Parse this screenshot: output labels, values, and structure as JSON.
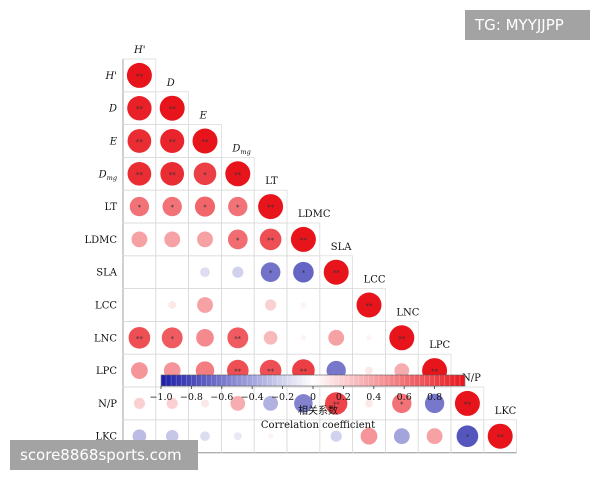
{
  "watermarks": {
    "top_right": "TG: MYYJJPP",
    "bottom_left": "score8868sports.com"
  },
  "chart_data": {
    "type": "heatmap",
    "variables": [
      {
        "label": "H'",
        "italic": true
      },
      {
        "label": "D",
        "italic": true
      },
      {
        "label": "E",
        "italic": true
      },
      {
        "label": "D",
        "sub": "mg",
        "italic": true
      },
      {
        "label": "LT"
      },
      {
        "label": "LDMC"
      },
      {
        "label": "SLA"
      },
      {
        "label": "LCC"
      },
      {
        "label": "LNC"
      },
      {
        "label": "LPC"
      },
      {
        "label": "N/P"
      },
      {
        "label": "LKC"
      }
    ],
    "cells": [
      [
        {
          "r": 1.0,
          "sig": "**"
        }
      ],
      [
        {
          "r": 0.95,
          "sig": "**"
        },
        {
          "r": 1.0,
          "sig": "**"
        }
      ],
      [
        {
          "r": 0.9,
          "sig": "**"
        },
        {
          "r": 0.93,
          "sig": "**"
        },
        {
          "r": 1.0,
          "sig": "**"
        }
      ],
      [
        {
          "r": 0.9,
          "sig": "**"
        },
        {
          "r": 0.9,
          "sig": "**"
        },
        {
          "r": 0.82,
          "sig": "*"
        },
        {
          "r": 1.0,
          "sig": "**"
        }
      ],
      [
        {
          "r": 0.6,
          "sig": "*"
        },
        {
          "r": 0.6,
          "sig": "*"
        },
        {
          "r": 0.65,
          "sig": "*"
        },
        {
          "r": 0.6,
          "sig": "*"
        },
        {
          "r": 1.0,
          "sig": "**"
        }
      ],
      [
        {
          "r": 0.4,
          "sig": ""
        },
        {
          "r": 0.4,
          "sig": ""
        },
        {
          "r": 0.4,
          "sig": ""
        },
        {
          "r": 0.62,
          "sig": "*"
        },
        {
          "r": 0.75,
          "sig": "**"
        },
        {
          "r": 1.0,
          "sig": "**"
        }
      ],
      [
        {
          "r": 0.0,
          "sig": ""
        },
        {
          "r": 0.0,
          "sig": ""
        },
        {
          "r": -0.15,
          "sig": ""
        },
        {
          "r": -0.2,
          "sig": ""
        },
        {
          "r": -0.62,
          "sig": "*"
        },
        {
          "r": -0.68,
          "sig": "*"
        },
        {
          "r": 1.0,
          "sig": "**"
        }
      ],
      [
        {
          "r": 0.0,
          "sig": ""
        },
        {
          "r": 0.1,
          "sig": ""
        },
        {
          "r": 0.4,
          "sig": ""
        },
        {
          "r": 0.0,
          "sig": ""
        },
        {
          "r": 0.2,
          "sig": ""
        },
        {
          "r": 0.05,
          "sig": ""
        },
        {
          "r": 0.0,
          "sig": ""
        },
        {
          "r": 1.0,
          "sig": "**"
        }
      ],
      [
        {
          "r": 0.75,
          "sig": "**"
        },
        {
          "r": 0.7,
          "sig": "*"
        },
        {
          "r": 0.5,
          "sig": ""
        },
        {
          "r": 0.7,
          "sig": "**"
        },
        {
          "r": 0.3,
          "sig": ""
        },
        {
          "r": 0.05,
          "sig": ""
        },
        {
          "r": 0.4,
          "sig": ""
        },
        {
          "r": 0.05,
          "sig": ""
        },
        {
          "r": 1.0,
          "sig": "**"
        }
      ],
      [
        {
          "r": 0.45,
          "sig": ""
        },
        {
          "r": 0.45,
          "sig": ""
        },
        {
          "r": 0.55,
          "sig": ""
        },
        {
          "r": 0.75,
          "sig": "**"
        },
        {
          "r": 0.75,
          "sig": "**"
        },
        {
          "r": 0.82,
          "sig": "**"
        },
        {
          "r": -0.6,
          "sig": ""
        },
        {
          "r": 0.1,
          "sig": ""
        },
        {
          "r": 0.35,
          "sig": ""
        },
        {
          "r": 1.0,
          "sig": "**"
        }
      ],
      [
        {
          "r": 0.2,
          "sig": ""
        },
        {
          "r": 0.2,
          "sig": ""
        },
        {
          "r": 0.1,
          "sig": ""
        },
        {
          "r": 0.35,
          "sig": ""
        },
        {
          "r": -0.35,
          "sig": ""
        },
        {
          "r": -0.55,
          "sig": ""
        },
        {
          "r": 0.8,
          "sig": "**"
        },
        {
          "r": 0.1,
          "sig": ""
        },
        {
          "r": 0.6,
          "sig": "*"
        },
        {
          "r": -0.6,
          "sig": ""
        },
        {
          "r": 1.0,
          "sig": "**"
        }
      ],
      [
        {
          "r": -0.3,
          "sig": ""
        },
        {
          "r": -0.25,
          "sig": ""
        },
        {
          "r": -0.15,
          "sig": ""
        },
        {
          "r": -0.1,
          "sig": ""
        },
        {
          "r": 0.05,
          "sig": ""
        },
        {
          "r": 0.0,
          "sig": ""
        },
        {
          "r": -0.2,
          "sig": ""
        },
        {
          "r": 0.45,
          "sig": ""
        },
        {
          "r": -0.4,
          "sig": ""
        },
        {
          "r": 0.4,
          "sig": ""
        },
        {
          "r": -0.75,
          "sig": "*"
        },
        {
          "r": 1.0,
          "sig": "**"
        }
      ]
    ],
    "colorbar": {
      "range": [
        -1.0,
        1.0
      ],
      "ticks": [
        "-1.0",
        "-0.8",
        "-0.6",
        "-0.4",
        "-0.2",
        "0",
        "0.2",
        "0.4",
        "0.6",
        "0.8"
      ],
      "tick_values": [
        -1.0,
        -0.8,
        -0.6,
        -0.4,
        -0.2,
        0.0,
        0.2,
        0.4,
        0.6,
        0.8
      ],
      "label_cn": "相关系数",
      "label_en": "Correlation coefficient",
      "color_negative": "#1c1ca8",
      "color_zero": "#ffffff",
      "color_positive": "#e8141c"
    }
  }
}
